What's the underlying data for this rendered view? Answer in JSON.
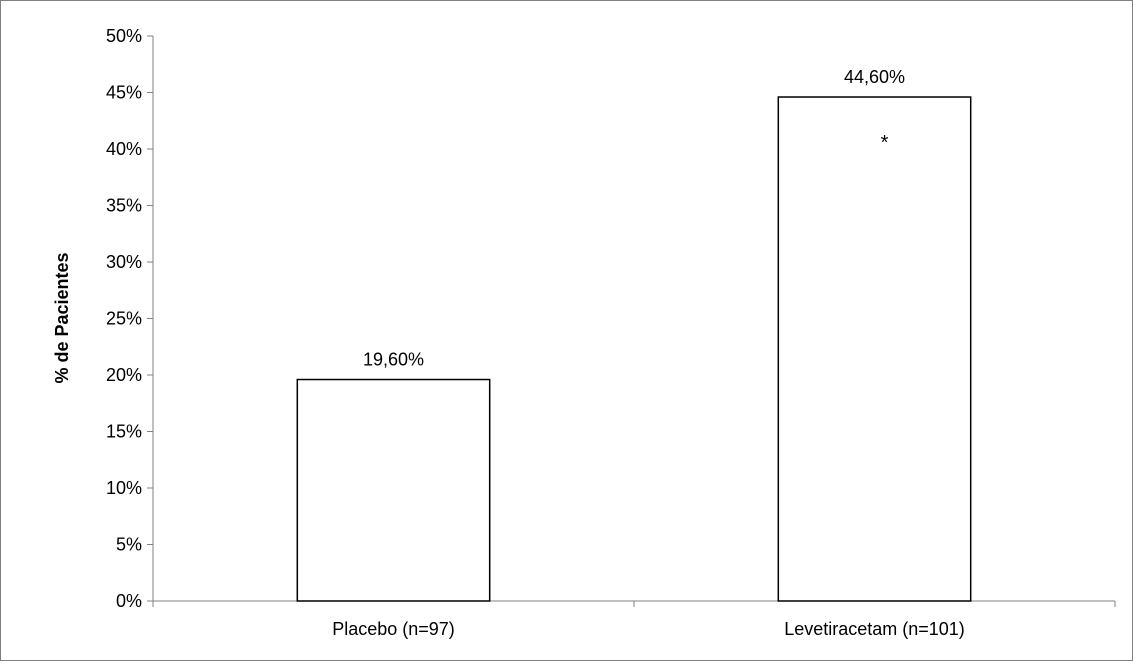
{
  "chart_data": {
    "type": "bar",
    "categories": [
      "Placebo (n=97)",
      "Levetiracetam (n=101)"
    ],
    "values": [
      19.6,
      44.6
    ],
    "data_labels": [
      "19,60%",
      "44,60%"
    ],
    "annotations": [
      {
        "category_index": 1,
        "text": "*"
      }
    ],
    "title": "",
    "xlabel": "",
    "ylabel": "% de Pacientes",
    "ylim": [
      0,
      50
    ],
    "yticks": [
      0,
      5,
      10,
      15,
      20,
      25,
      30,
      35,
      40,
      45,
      50
    ],
    "ytick_labels": [
      "0%",
      "5%",
      "10%",
      "15%",
      "20%",
      "25%",
      "30%",
      "35%",
      "40%",
      "45%",
      "50%"
    ],
    "grid": false,
    "legend": "none",
    "colors": {
      "bar_fill": "#ffffff",
      "bar_stroke": "#000000",
      "axis": "#808080",
      "border": "#808080"
    }
  }
}
